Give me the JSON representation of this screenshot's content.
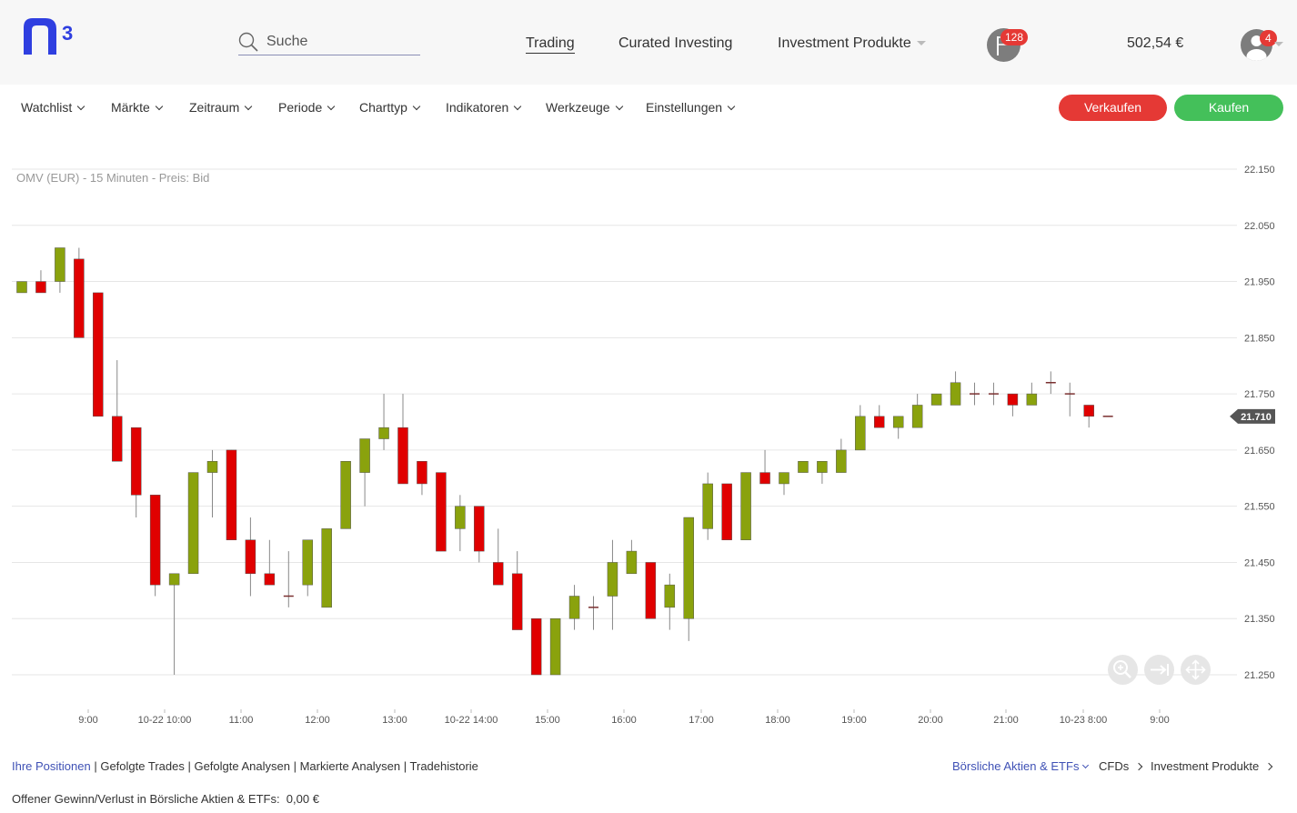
{
  "header": {
    "logo_text": "n3",
    "search_placeholder": "Suche",
    "nav": [
      "Trading",
      "Curated Investing",
      "Investment Produkte"
    ],
    "notifications_count": "128",
    "balance": "502,54 €",
    "user_badge": "4"
  },
  "toolbar": {
    "items": [
      "Watchlist",
      "Märkte",
      "Zeitraum",
      "Periode",
      "Charttyp",
      "Indikatoren",
      "Werkzeuge",
      "Einstellungen"
    ],
    "sell_label": "Verkaufen",
    "buy_label": "Kaufen"
  },
  "chart_data": {
    "type": "candlestick",
    "title": "OMV (EUR) - 15 Minuten - Preis: Bid",
    "ylim": [
      21.25,
      22.15
    ],
    "y_ticks": [
      "22.150",
      "22.050",
      "21.950",
      "21.850",
      "21.750",
      "21.650",
      "21.550",
      "21.450",
      "21.350",
      "21.250"
    ],
    "x_ticks": [
      "9:00",
      "10-22 10:00",
      "11:00",
      "12:00",
      "13:00",
      "10-22 14:00",
      "15:00",
      "16:00",
      "17:00",
      "18:00",
      "19:00",
      "20:00",
      "21:00",
      "10-23 8:00",
      "9:00"
    ],
    "current_price": "21.710",
    "up_color": "#8aa20d",
    "down_color": "#e00000",
    "candles": [
      {
        "o": 21.93,
        "h": 21.95,
        "l": 21.93,
        "c": 21.95
      },
      {
        "o": 21.95,
        "h": 21.97,
        "l": 21.93,
        "c": 21.93
      },
      {
        "o": 21.95,
        "h": 22.01,
        "l": 21.93,
        "c": 22.01
      },
      {
        "o": 21.99,
        "h": 22.01,
        "l": 21.85,
        "c": 21.85
      },
      {
        "o": 21.93,
        "h": 21.93,
        "l": 21.71,
        "c": 21.71
      },
      {
        "o": 21.71,
        "h": 21.81,
        "l": 21.63,
        "c": 21.63
      },
      {
        "o": 21.69,
        "h": 21.69,
        "l": 21.53,
        "c": 21.57
      },
      {
        "o": 21.57,
        "h": 21.57,
        "l": 21.39,
        "c": 21.41
      },
      {
        "o": 21.41,
        "h": 21.43,
        "l": 21.25,
        "c": 21.43
      },
      {
        "o": 21.43,
        "h": 21.61,
        "l": 21.43,
        "c": 21.61
      },
      {
        "o": 21.61,
        "h": 21.65,
        "l": 21.53,
        "c": 21.63
      },
      {
        "o": 21.65,
        "h": 21.65,
        "l": 21.49,
        "c": 21.49
      },
      {
        "o": 21.49,
        "h": 21.53,
        "l": 21.39,
        "c": 21.43
      },
      {
        "o": 21.43,
        "h": 21.49,
        "l": 21.41,
        "c": 21.41
      },
      {
        "o": 21.39,
        "h": 21.47,
        "l": 21.37,
        "c": 21.39
      },
      {
        "o": 21.41,
        "h": 21.49,
        "l": 21.39,
        "c": 21.49
      },
      {
        "o": 21.37,
        "h": 21.51,
        "l": 21.37,
        "c": 21.51
      },
      {
        "o": 21.51,
        "h": 21.63,
        "l": 21.51,
        "c": 21.63
      },
      {
        "o": 21.61,
        "h": 21.67,
        "l": 21.55,
        "c": 21.67
      },
      {
        "o": 21.67,
        "h": 21.75,
        "l": 21.65,
        "c": 21.69
      },
      {
        "o": 21.69,
        "h": 21.75,
        "l": 21.59,
        "c": 21.59
      },
      {
        "o": 21.63,
        "h": 21.63,
        "l": 21.57,
        "c": 21.59
      },
      {
        "o": 21.61,
        "h": 21.61,
        "l": 21.47,
        "c": 21.47
      },
      {
        "o": 21.51,
        "h": 21.57,
        "l": 21.47,
        "c": 21.55
      },
      {
        "o": 21.55,
        "h": 21.55,
        "l": 21.45,
        "c": 21.47
      },
      {
        "o": 21.45,
        "h": 21.51,
        "l": 21.41,
        "c": 21.41
      },
      {
        "o": 21.43,
        "h": 21.47,
        "l": 21.33,
        "c": 21.33
      },
      {
        "o": 21.35,
        "h": 21.35,
        "l": 21.25,
        "c": 21.25
      },
      {
        "o": 21.25,
        "h": 21.35,
        "l": 21.25,
        "c": 21.35
      },
      {
        "o": 21.35,
        "h": 21.41,
        "l": 21.33,
        "c": 21.39
      },
      {
        "o": 21.37,
        "h": 21.39,
        "l": 21.33,
        "c": 21.37
      },
      {
        "o": 21.39,
        "h": 21.49,
        "l": 21.33,
        "c": 21.45
      },
      {
        "o": 21.43,
        "h": 21.49,
        "l": 21.43,
        "c": 21.47
      },
      {
        "o": 21.45,
        "h": 21.45,
        "l": 21.35,
        "c": 21.35
      },
      {
        "o": 21.37,
        "h": 21.43,
        "l": 21.33,
        "c": 21.41
      },
      {
        "o": 21.35,
        "h": 21.53,
        "l": 21.31,
        "c": 21.53
      },
      {
        "o": 21.51,
        "h": 21.61,
        "l": 21.49,
        "c": 21.59
      },
      {
        "o": 21.59,
        "h": 21.59,
        "l": 21.49,
        "c": 21.49
      },
      {
        "o": 21.49,
        "h": 21.61,
        "l": 21.49,
        "c": 21.61
      },
      {
        "o": 21.61,
        "h": 21.65,
        "l": 21.59,
        "c": 21.59
      },
      {
        "o": 21.59,
        "h": 21.61,
        "l": 21.57,
        "c": 21.61
      },
      {
        "o": 21.61,
        "h": 21.63,
        "l": 21.61,
        "c": 21.63
      },
      {
        "o": 21.61,
        "h": 21.63,
        "l": 21.59,
        "c": 21.63
      },
      {
        "o": 21.61,
        "h": 21.67,
        "l": 21.61,
        "c": 21.65
      },
      {
        "o": 21.65,
        "h": 21.73,
        "l": 21.65,
        "c": 21.71
      },
      {
        "o": 21.71,
        "h": 21.73,
        "l": 21.69,
        "c": 21.69
      },
      {
        "o": 21.69,
        "h": 21.71,
        "l": 21.67,
        "c": 21.71
      },
      {
        "o": 21.69,
        "h": 21.75,
        "l": 21.69,
        "c": 21.73
      },
      {
        "o": 21.73,
        "h": 21.75,
        "l": 21.73,
        "c": 21.75
      },
      {
        "o": 21.73,
        "h": 21.79,
        "l": 21.73,
        "c": 21.77
      },
      {
        "o": 21.75,
        "h": 21.77,
        "l": 21.73,
        "c": 21.75
      },
      {
        "o": 21.75,
        "h": 21.77,
        "l": 21.73,
        "c": 21.75
      },
      {
        "o": 21.75,
        "h": 21.75,
        "l": 21.71,
        "c": 21.73
      },
      {
        "o": 21.73,
        "h": 21.77,
        "l": 21.73,
        "c": 21.75
      },
      {
        "o": 21.77,
        "h": 21.79,
        "l": 21.75,
        "c": 21.77
      },
      {
        "o": 21.75,
        "h": 21.77,
        "l": 21.71,
        "c": 21.75
      },
      {
        "o": 21.73,
        "h": 21.73,
        "l": 21.69,
        "c": 21.71
      },
      {
        "o": 21.71,
        "h": 21.71,
        "l": 21.71,
        "c": 21.71
      }
    ]
  },
  "footer": {
    "tabs": [
      "Ihre Positionen",
      "Gefolgte Trades",
      "Gefolgte Analysen",
      "Markierte Analysen",
      "Tradehistorie"
    ],
    "markets": [
      "Börsliche Aktien & ETFs",
      "CFDs",
      "Investment Produkte"
    ],
    "pnl_label": "Offener Gewinn/Verlust in Börsliche Aktien & ETFs:",
    "pnl_value": "0,00 €"
  }
}
